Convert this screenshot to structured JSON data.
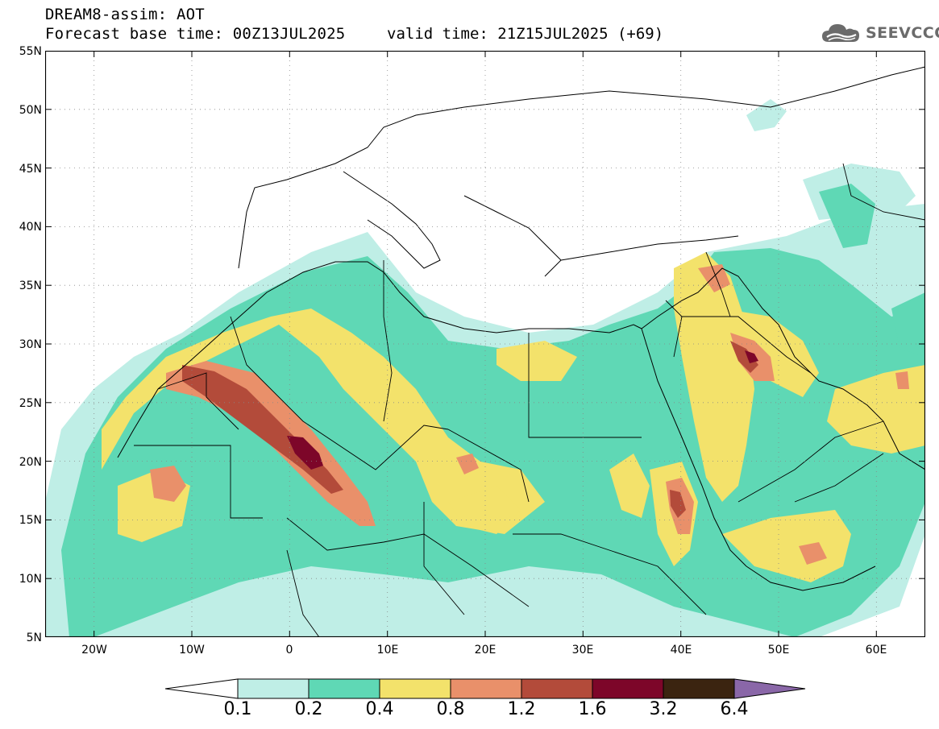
{
  "title": {
    "line1": "DREAM8-assim: AOT",
    "line2": "Forecast base time: 00Z13JUL2025",
    "valid": "valid time: 21Z15JUL2025 (+69)"
  },
  "logo": {
    "text": "SEEVCCC",
    "icon": "cloud-icon"
  },
  "map": {
    "extent": {
      "lon": [
        -25,
        65
      ],
      "lat": [
        5,
        55
      ]
    },
    "lat_ticks": [
      "55N",
      "50N",
      "45N",
      "40N",
      "35N",
      "30N",
      "25N",
      "20N",
      "15N",
      "10N",
      "5N"
    ],
    "lon_ticks": [
      "20W",
      "10W",
      "0",
      "10E",
      "20E",
      "30E",
      "40E",
      "50E",
      "60E"
    ],
    "gridlines": "dotted"
  },
  "colorbar": {
    "labels": [
      "0.1",
      "0.2",
      "0.4",
      "0.8",
      "1.2",
      "1.6",
      "3.2",
      "6.4"
    ],
    "colors": [
      "#ffffff",
      "#bfeee6",
      "#5fd8b5",
      "#f3e26b",
      "#e9906a",
      "#b34b3a",
      "#7d0629",
      "#3b2410",
      "#8a67a8"
    ]
  }
}
